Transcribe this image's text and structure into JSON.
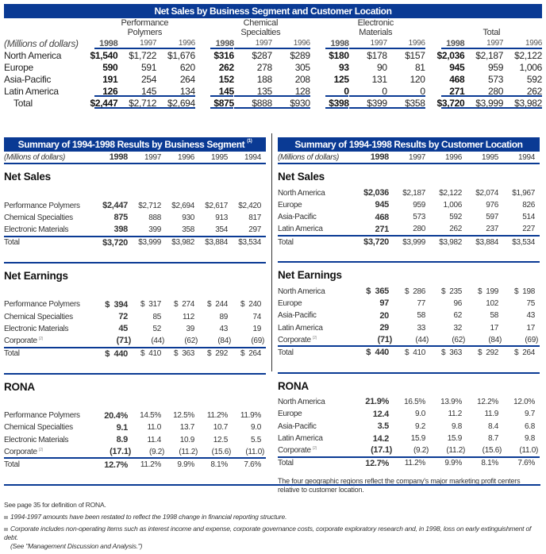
{
  "top": {
    "title": "Net Sales by Business Segment and Customer Location",
    "units": "(Millions of dollars)",
    "groups": [
      {
        "line1": "Performance",
        "line2": "Polymers"
      },
      {
        "line1": "Chemical",
        "line2": "Specialties"
      },
      {
        "line1": "Electronic",
        "line2": "Materials"
      },
      {
        "line1": "",
        "line2": "Total"
      }
    ],
    "years": [
      "1998",
      "1997",
      "1996"
    ],
    "rows": [
      {
        "label": "North America",
        "values": [
          "$1,540",
          "$1,722",
          "$1,676",
          "$316",
          "$287",
          "$289",
          "$180",
          "$178",
          "$157",
          "$2,036",
          "$2,187",
          "$2,122"
        ]
      },
      {
        "label": "Europe",
        "values": [
          "590",
          "591",
          "620",
          "262",
          "278",
          "305",
          "93",
          "90",
          "81",
          "945",
          "959",
          "1,006"
        ]
      },
      {
        "label": "Asia-Pacific",
        "values": [
          "191",
          "254",
          "264",
          "152",
          "188",
          "208",
          "125",
          "131",
          "120",
          "468",
          "573",
          "592"
        ]
      },
      {
        "label": "Latin America",
        "values": [
          "126",
          "145",
          "134",
          "145",
          "135",
          "128",
          "0",
          "0",
          "0",
          "271",
          "280",
          "262"
        ]
      }
    ],
    "total": {
      "label": "Total",
      "values": [
        "$2,447",
        "$2,712",
        "$2,694",
        "$875",
        "$888",
        "$930",
        "$398",
        "$399",
        "$358",
        "$3,720",
        "$3,999",
        "$3,982"
      ]
    }
  },
  "left": {
    "title": "Summary of 1994-1998 Results by Business Segment",
    "title_note": "(1)",
    "units": "(Millions of dollars)",
    "years": [
      "1998",
      "1997",
      "1996",
      "1995",
      "1994"
    ],
    "sections": [
      {
        "title": "Net Sales",
        "rows": [
          {
            "label": "Performance Polymers",
            "values": [
              "$2,447",
              "$2,712",
              "$2,694",
              "$2,617",
              "$2,420"
            ]
          },
          {
            "label": "Chemical Specialties",
            "values": [
              "875",
              "888",
              "930",
              "913",
              "817"
            ]
          },
          {
            "label": "Electronic Materials",
            "values": [
              "398",
              "399",
              "358",
              "354",
              "297"
            ]
          }
        ],
        "total": {
          "label": "Total",
          "values": [
            "$3,720",
            "$3,999",
            "$3,982",
            "$3,884",
            "$3,534"
          ]
        }
      },
      {
        "title": "Net Earnings",
        "rows": [
          {
            "label": "Performance Polymers",
            "values": [
              "$  394",
              "$  317",
              "$  274",
              "$  244",
              "$  240"
            ]
          },
          {
            "label": "Chemical Specialties",
            "values": [
              "72",
              "85",
              "112",
              "89",
              "74"
            ]
          },
          {
            "label": "Electronic Materials",
            "values": [
              "45",
              "52",
              "39",
              "43",
              "19"
            ]
          },
          {
            "label": "Corporate",
            "note": "(2)",
            "values": [
              "(71)",
              "(44)",
              "(62)",
              "(84)",
              "(69)"
            ]
          }
        ],
        "total": {
          "label": "Total",
          "values": [
            "$  440",
            "$  410",
            "$  363",
            "$  292",
            "$  264"
          ]
        }
      },
      {
        "title": "RONA",
        "rows": [
          {
            "label": "Performance Polymers",
            "values": [
              "20.4%",
              "14.5%",
              "12.5%",
              "11.2%",
              "11.9%"
            ]
          },
          {
            "label": "Chemical Specialties",
            "values": [
              "9.1",
              "11.0",
              "13.7",
              "10.7",
              "9.0"
            ]
          },
          {
            "label": "Electronic Materials",
            "values": [
              "8.9",
              "11.4",
              "10.9",
              "12.5",
              "5.5"
            ]
          },
          {
            "label": "Corporate",
            "note": "(2)",
            "values": [
              "(17.1)",
              "(9.2)",
              "(11.2)",
              "(15.6)",
              "(11.0)"
            ]
          }
        ],
        "total": {
          "label": "Total",
          "values": [
            "12.7%",
            "11.2%",
            "9.9%",
            "8.1%",
            "7.6%"
          ]
        }
      }
    ]
  },
  "right": {
    "title": "Summary of 1994-1998 Results by Customer Location",
    "units": "(Millions of dollars)",
    "years": [
      "1998",
      "1997",
      "1996",
      "1995",
      "1994"
    ],
    "sections": [
      {
        "title": "Net Sales",
        "rows": [
          {
            "label": "North America",
            "values": [
              "$2,036",
              "$2,187",
              "$2,122",
              "$2,074",
              "$1,967"
            ]
          },
          {
            "label": "Europe",
            "values": [
              "945",
              "959",
              "1,006",
              "976",
              "826"
            ]
          },
          {
            "label": "Asia-Pacific",
            "values": [
              "468",
              "573",
              "592",
              "597",
              "514"
            ]
          },
          {
            "label": "Latin America",
            "values": [
              "271",
              "280",
              "262",
              "237",
              "227"
            ]
          }
        ],
        "total": {
          "label": "Total",
          "values": [
            "$3,720",
            "$3,999",
            "$3,982",
            "$3,884",
            "$3,534"
          ]
        }
      },
      {
        "title": "Net Earnings",
        "rows": [
          {
            "label": "North America",
            "values": [
              "$  365",
              "$  286",
              "$  235",
              "$  199",
              "$  198"
            ]
          },
          {
            "label": "Europe",
            "values": [
              "97",
              "77",
              "96",
              "102",
              "75"
            ]
          },
          {
            "label": "Asia-Pacific",
            "values": [
              "20",
              "58",
              "62",
              "58",
              "43"
            ]
          },
          {
            "label": "Latin America",
            "values": [
              "29",
              "33",
              "32",
              "17",
              "17"
            ]
          },
          {
            "label": "Corporate",
            "note": "(2)",
            "values": [
              "(71)",
              "(44)",
              "(62)",
              "(84)",
              "(69)"
            ]
          }
        ],
        "total": {
          "label": "Total",
          "values": [
            "$  440",
            "$  410",
            "$  363",
            "$  292",
            "$  264"
          ]
        }
      },
      {
        "title": "RONA",
        "rows": [
          {
            "label": "North America",
            "values": [
              "21.9%",
              "16.5%",
              "13.9%",
              "12.2%",
              "12.0%"
            ]
          },
          {
            "label": "Europe",
            "values": [
              "12.4",
              "9.0",
              "11.2",
              "11.9",
              "9.7"
            ]
          },
          {
            "label": "Asia-Pacific",
            "values": [
              "3.5",
              "9.2",
              "9.8",
              "8.4",
              "6.8"
            ]
          },
          {
            "label": "Latin America",
            "values": [
              "14.2",
              "15.9",
              "15.9",
              "8.7",
              "9.8"
            ]
          },
          {
            "label": "Corporate",
            "note": "(2)",
            "values": [
              "(17.1)",
              "(9.2)",
              "(11.2)",
              "(15.6)",
              "(11.0)"
            ]
          }
        ],
        "total": {
          "label": "Total",
          "values": [
            "12.7%",
            "11.2%",
            "9.9%",
            "8.1%",
            "7.6%"
          ]
        }
      }
    ],
    "note": "The four geographic regions reflect the company's major marketing profit centers relative to customer location."
  },
  "footnotes": {
    "rona": "See page 35 for definition of RONA.",
    "note1": "1994-1997 amounts have been restated to reflect the 1998 change in financial reporting structure.",
    "note2a": "Corporate includes non-operating items such as interest income and expense, corporate governance costs, corporate exploratory research and, in 1998, loss on early extinguishment of debt.",
    "note2b": "(See \"Management Discussion and Analysis.\")"
  }
}
